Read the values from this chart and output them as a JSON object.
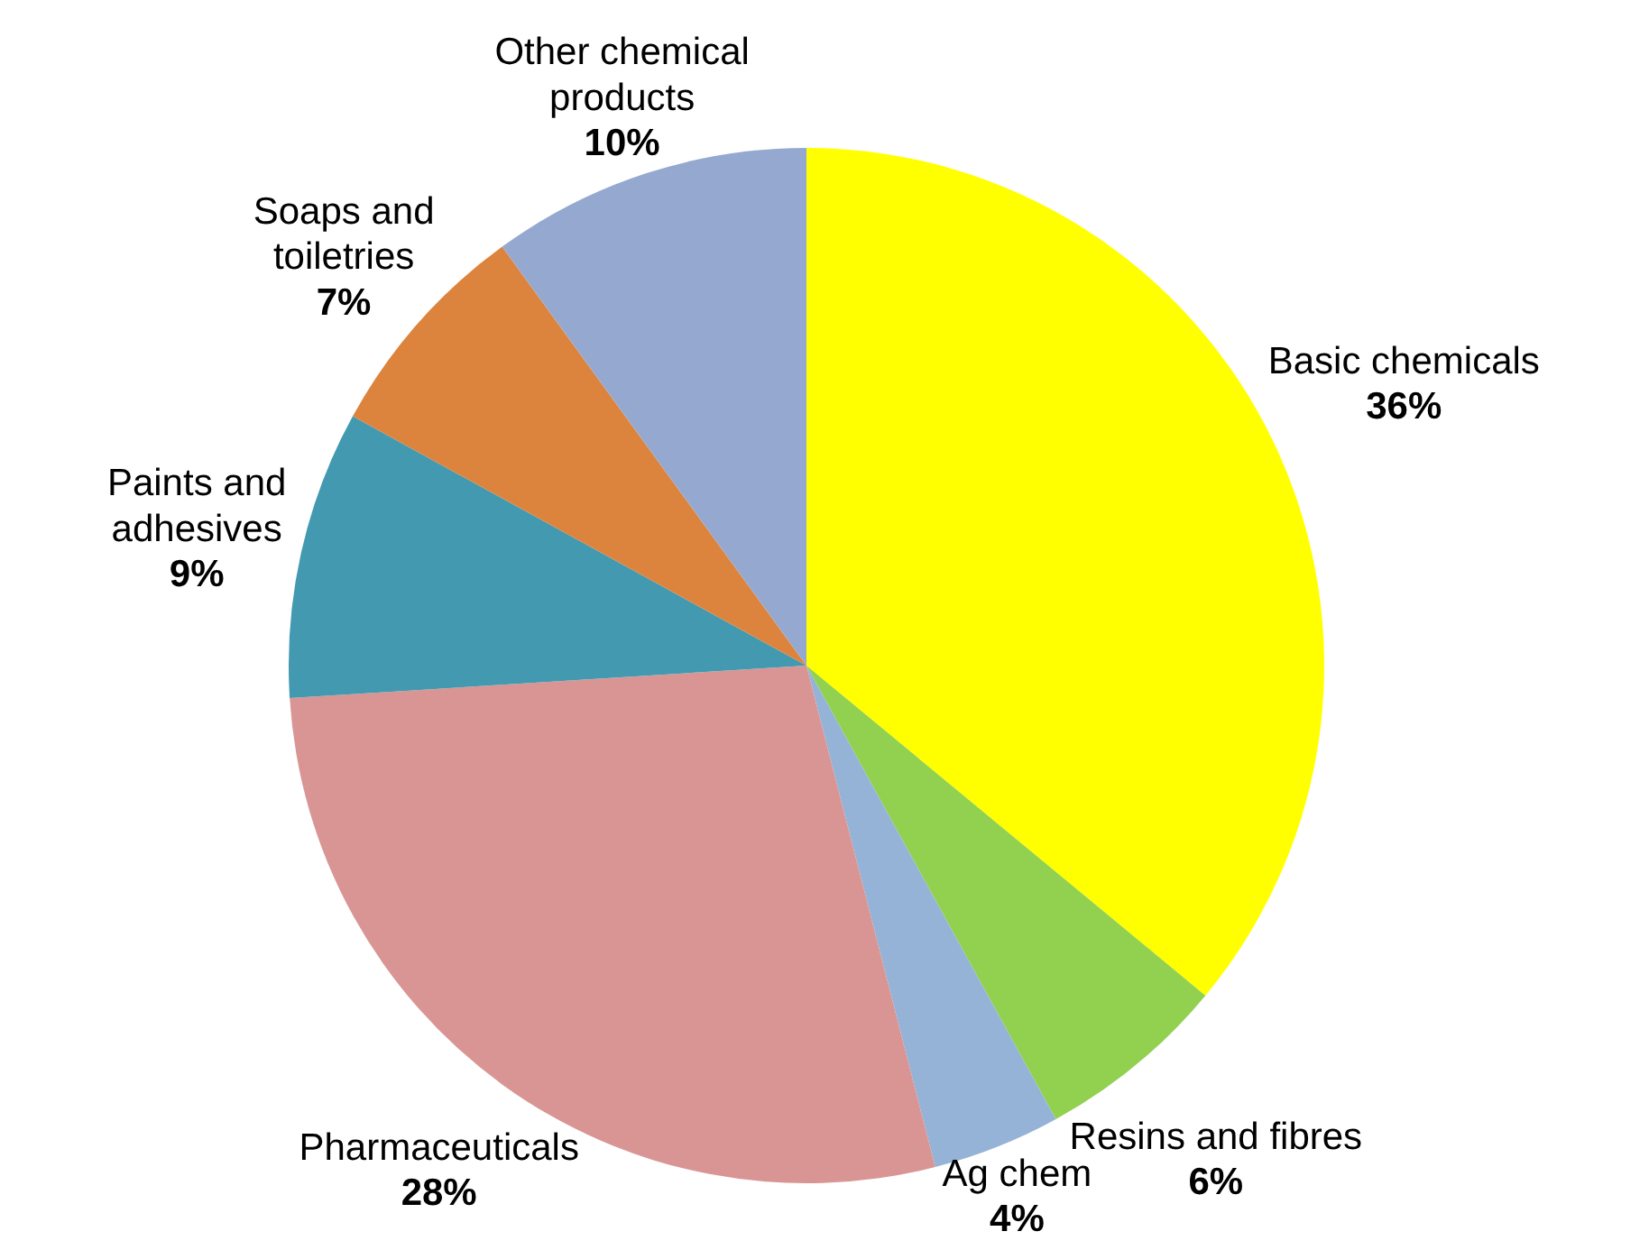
{
  "chart_data": {
    "type": "pie",
    "categories": [
      "Basic chemicals",
      "Resins and fibres",
      "Ag chem",
      "Pharmaceuticals",
      "Paints and adhesives",
      "Soaps and toiletries",
      "Other chemical products"
    ],
    "values": [
      36,
      6,
      4,
      28,
      9,
      7,
      10
    ],
    "value_labels": [
      "36%",
      "6%",
      "4%",
      "28%",
      "9%",
      "7%",
      "10%"
    ],
    "colors": [
      "#ffff00",
      "#92d050",
      "#95b3d7",
      "#d99594",
      "#4299b0",
      "#dc843e",
      "#95a9d0"
    ],
    "legend": false
  }
}
